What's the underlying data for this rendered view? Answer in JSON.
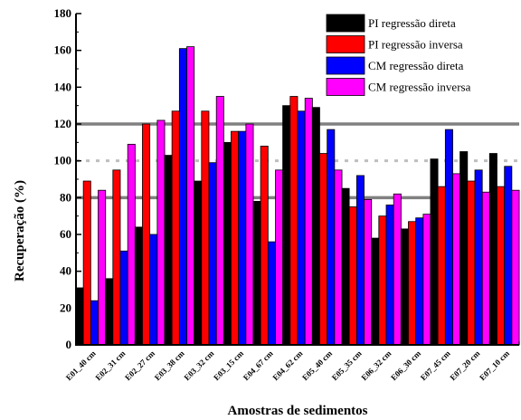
{
  "chart_data": {
    "type": "bar",
    "xlabel": "Amostras de sedimentos",
    "ylabel": "Recuperação (%)",
    "ylim": [
      0,
      180
    ],
    "yticks": [
      0,
      20,
      40,
      60,
      80,
      100,
      120,
      140,
      160,
      180
    ],
    "categories": [
      "E01_40 cm",
      "E02_31 cm",
      "E02_27 cm",
      "E03_38 cm",
      "E03_32 cm",
      "E03_15 cm",
      "E04_67 cm",
      "E04_62 cm",
      "E05_40 cm",
      "E05_35 cm",
      "E06_32 cm",
      "E06_30 cm",
      "E07_45 cm",
      "E07_20 cm",
      "E07_10 cm"
    ],
    "series": [
      {
        "name": "PI regressão direta",
        "color": "#000000",
        "values": [
          31,
          36,
          64,
          103,
          89,
          110,
          78,
          130,
          129,
          85,
          58,
          63,
          101,
          105,
          104
        ]
      },
      {
        "name": "PI regressão inversa",
        "color": "#ff0000",
        "values": [
          89,
          95,
          120,
          127,
          127,
          116,
          108,
          135,
          104,
          75,
          70,
          67,
          86,
          89,
          86
        ]
      },
      {
        "name": "CM regressão direta",
        "color": "#0000ff",
        "values": [
          24,
          51,
          60,
          161,
          99,
          116,
          56,
          127,
          117,
          92,
          76,
          69,
          117,
          95,
          97
        ]
      },
      {
        "name": "CM regressão inversa",
        "color": "#ff00ff",
        "values": [
          84,
          109,
          122,
          162,
          135,
          120,
          95,
          134,
          95,
          79,
          82,
          71,
          93,
          83,
          84
        ]
      }
    ],
    "reference_lines": [
      {
        "value": 120,
        "style": "solid",
        "color": "#808080"
      },
      {
        "value": 100,
        "style": "dotted",
        "color": "#bfbfbf"
      },
      {
        "value": 80,
        "style": "solid",
        "color": "#808080"
      }
    ],
    "legend_position": "top-right",
    "grid": false
  }
}
